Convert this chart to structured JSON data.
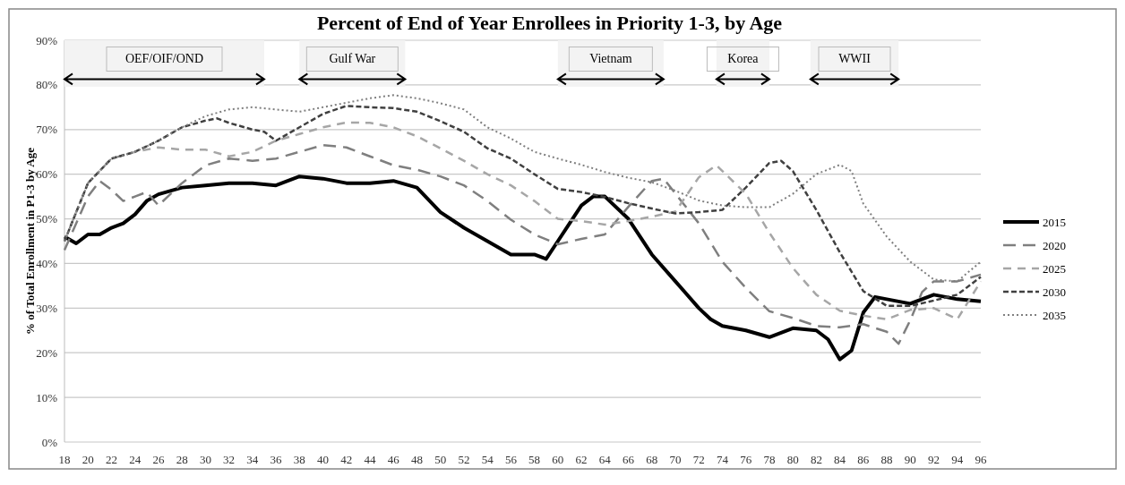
{
  "chart_data": {
    "type": "line",
    "title": "Percent of End of Year Enrollees in Priority 1-3, by Age",
    "ylabel": "% of Total Enrollment in P1-3 by Age",
    "xlim": [
      18,
      96
    ],
    "xticks": [
      18,
      20,
      22,
      24,
      26,
      28,
      30,
      32,
      34,
      36,
      38,
      40,
      42,
      44,
      46,
      48,
      50,
      52,
      54,
      56,
      58,
      60,
      62,
      64,
      66,
      68,
      70,
      72,
      74,
      76,
      78,
      80,
      82,
      84,
      86,
      88,
      90,
      92,
      94,
      96
    ],
    "ylim": [
      0,
      90
    ],
    "yticks": [
      {
        "value": 0,
        "label": "0%"
      },
      {
        "value": 10,
        "label": "10%"
      },
      {
        "value": 20,
        "label": "20%"
      },
      {
        "value": 30,
        "label": "30%"
      },
      {
        "value": 40,
        "label": "40%"
      },
      {
        "value": 50,
        "label": "50%"
      },
      {
        "value": 60,
        "label": "60%"
      },
      {
        "value": 70,
        "label": "70%"
      },
      {
        "value": 80,
        "label": "80%"
      },
      {
        "value": 90,
        "label": "90%"
      }
    ],
    "grid": "y",
    "legend": "right",
    "bands": [
      {
        "axis": "x",
        "from": 18,
        "to": 35,
        "label": "OEF/OIF/OND"
      },
      {
        "axis": "x",
        "from": 38,
        "to": 47,
        "label": "Gulf War"
      },
      {
        "axis": "x",
        "from": 60,
        "to": 69,
        "label": "Vietnam"
      },
      {
        "axis": "x",
        "from": 73.5,
        "to": 78,
        "label": "Korea"
      },
      {
        "axis": "x",
        "from": 81.5,
        "to": 89,
        "label": "WWII"
      }
    ],
    "series": [
      {
        "name": "2015",
        "color": "#000000",
        "line_style": "solid",
        "x": [
          18,
          19,
          20,
          21,
          22,
          23,
          24,
          25,
          26,
          28,
          30,
          32,
          34,
          36,
          38,
          40,
          42,
          44,
          46,
          48,
          50,
          52,
          54,
          56,
          58,
          59,
          60,
          62,
          63,
          64,
          66,
          68,
          70,
          72,
          73,
          74,
          76,
          78,
          80,
          82,
          83,
          84,
          85,
          86,
          87,
          88,
          90,
          92,
          94,
          96
        ],
        "values": [
          46,
          44.5,
          46.5,
          46.5,
          48,
          49,
          51,
          54,
          55.5,
          57,
          57.5,
          58,
          58,
          57.5,
          59.5,
          59,
          58,
          58,
          58.5,
          57,
          51.5,
          48,
          45,
          42,
          42,
          41,
          45,
          53,
          55,
          55,
          50,
          42,
          36,
          30,
          27.5,
          26,
          25,
          23.5,
          25.5,
          25,
          23,
          18.5,
          20.5,
          29,
          32.5,
          32,
          31,
          33,
          32,
          31.5
        ]
      },
      {
        "name": "2020",
        "color": "#7f7f7f",
        "line_style": "dashed",
        "x": [
          18,
          20,
          21,
          22,
          23,
          24,
          25,
          26,
          28,
          30,
          32,
          34,
          36,
          38,
          40,
          42,
          44,
          46,
          48,
          50,
          52,
          54,
          56,
          58,
          60,
          62,
          64,
          66,
          68,
          69,
          72,
          74,
          76,
          78,
          80,
          82,
          84,
          86,
          88,
          89,
          90,
          91,
          92,
          94,
          96
        ],
        "values": [
          43,
          55,
          58.5,
          56.5,
          54,
          55,
          56,
          53,
          58,
          62,
          63.5,
          63,
          63.5,
          65,
          66.5,
          66,
          64,
          62,
          61,
          59.5,
          57.5,
          54,
          49.8,
          46.5,
          44.3,
          45.5,
          46.5,
          52.7,
          58.5,
          59,
          49,
          40.4,
          34.5,
          29.3,
          27.8,
          26,
          25.7,
          26.4,
          24.7,
          22,
          27.3,
          33.6,
          36,
          36,
          37.5
        ]
      },
      {
        "name": "2025",
        "color": "#a6a6a6",
        "line_style": "dashed",
        "x": [
          18,
          20,
          22,
          24,
          26,
          28,
          30,
          32,
          34,
          36,
          38,
          40,
          42,
          44,
          46,
          48,
          50,
          52,
          54,
          56,
          58,
          60,
          62,
          64,
          66,
          68,
          70,
          72,
          73.5,
          76,
          78,
          80,
          82,
          84,
          86,
          88,
          90,
          92,
          94,
          96
        ],
        "values": [
          45,
          58,
          63.5,
          65,
          66,
          65.5,
          65.5,
          64,
          65,
          67.5,
          69,
          70.5,
          71.6,
          71.5,
          70.5,
          68.5,
          65.8,
          63,
          60,
          57.5,
          54,
          50,
          49.5,
          48.7,
          49.5,
          50.5,
          51.6,
          59.3,
          62,
          55.6,
          46.9,
          39,
          33,
          29.4,
          28.3,
          27.5,
          29.6,
          30,
          27.5,
          36
        ]
      },
      {
        "name": "2030",
        "color": "#404040",
        "line_style": "dashed",
        "x": [
          18,
          20,
          22,
          24,
          26,
          28,
          30,
          31,
          32,
          34,
          35,
          36,
          38,
          40,
          42,
          44,
          46,
          48,
          50,
          52,
          54,
          56,
          58,
          60,
          62,
          64,
          66,
          68,
          70,
          72,
          74,
          76,
          78,
          79,
          80,
          82,
          84,
          86,
          88,
          90,
          92,
          94,
          96
        ],
        "values": [
          45,
          58,
          63.5,
          65,
          67.5,
          70.5,
          72,
          72.5,
          71.5,
          70,
          69.5,
          67.5,
          70.5,
          73.5,
          75.3,
          75,
          74.8,
          74,
          71.9,
          69.5,
          65.8,
          63.5,
          60,
          56.7,
          56,
          54.9,
          53.5,
          52.3,
          51.2,
          51.5,
          52,
          57,
          62.5,
          63,
          60.7,
          52,
          42.5,
          33.8,
          30.5,
          30.5,
          31.7,
          33,
          37
        ]
      },
      {
        "name": "2035",
        "color": "#7f7f7f",
        "line_style": "dotted",
        "x": [
          18,
          20,
          22,
          24,
          26,
          28,
          30,
          32,
          34,
          36,
          38,
          40,
          42,
          44,
          46,
          48,
          50,
          52,
          54,
          56,
          58,
          60,
          62,
          64,
          66,
          68,
          70,
          72,
          74,
          76,
          78,
          80,
          82,
          84,
          85,
          86,
          88,
          90,
          92,
          94,
          96
        ],
        "values": [
          45,
          58,
          63.5,
          65,
          67.5,
          70.5,
          73,
          74.5,
          75,
          74.5,
          74,
          75,
          76,
          77,
          77.7,
          77,
          75.9,
          74.5,
          70.5,
          68,
          65,
          63.5,
          62.1,
          60.5,
          59.2,
          58.2,
          56.3,
          54.1,
          53,
          52.6,
          52.6,
          55.6,
          60,
          62.1,
          60.7,
          53.4,
          46,
          40.4,
          36.4,
          36,
          40.4
        ]
      }
    ]
  }
}
